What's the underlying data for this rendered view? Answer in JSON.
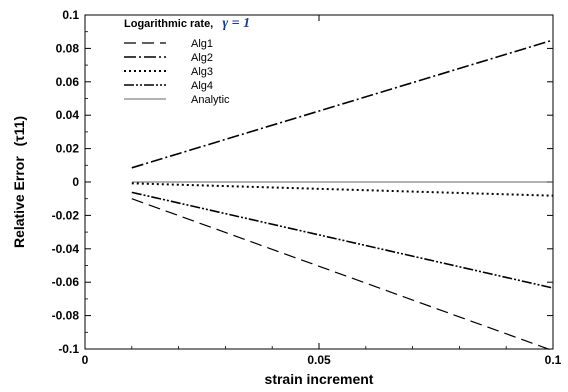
{
  "chart_data": {
    "type": "line",
    "title": "",
    "xlabel": "strain increment",
    "ylabel": "Relative Error",
    "ylabel_suffix": "(τ11)",
    "xlim": [
      0,
      0.1
    ],
    "ylim": [
      -0.1,
      0.1
    ],
    "x_ticks": [
      {
        "value": 0,
        "label": "0"
      },
      {
        "value": 0.05,
        "label": "0.05"
      },
      {
        "value": 0.1,
        "label": "0.1"
      }
    ],
    "y_ticks": [
      {
        "value": 0.1,
        "label": "0.1"
      },
      {
        "value": 0.08,
        "label": "0.08"
      },
      {
        "value": 0.06,
        "label": "0.06"
      },
      {
        "value": 0.04,
        "label": "0.04"
      },
      {
        "value": 0.02,
        "label": "0.02"
      },
      {
        "value": 0,
        "label": "0"
      },
      {
        "value": -0.02,
        "label": "-0.02"
      },
      {
        "value": -0.04,
        "label": "-0.04"
      },
      {
        "value": -0.06,
        "label": "-0.06"
      },
      {
        "value": -0.08,
        "label": "-0.08"
      },
      {
        "value": -0.1,
        "label": "-0.1"
      }
    ],
    "grid": false,
    "legend": {
      "placement": "top-left",
      "title": "Logarithmic rate,",
      "title_math": "γ = 1"
    },
    "series": [
      {
        "name": "Alg1",
        "dash": "dashed",
        "x": [
          0.01,
          0.1
        ],
        "y": [
          -0.01,
          -0.101
        ]
      },
      {
        "name": "Alg2",
        "dash": "dashdot",
        "x": [
          0.01,
          0.1
        ],
        "y": [
          0.0085,
          0.085
        ]
      },
      {
        "name": "Alg3",
        "dash": "dotted",
        "x": [
          0.01,
          0.1
        ],
        "y": [
          -0.0008,
          -0.0082
        ]
      },
      {
        "name": "Alg4",
        "dash": "dashdotdot",
        "x": [
          0.01,
          0.1
        ],
        "y": [
          -0.0062,
          -0.0635
        ]
      },
      {
        "name": "Analytic",
        "dash": "solid",
        "x": [
          0.01,
          0.1
        ],
        "y": [
          0,
          0
        ]
      }
    ]
  }
}
